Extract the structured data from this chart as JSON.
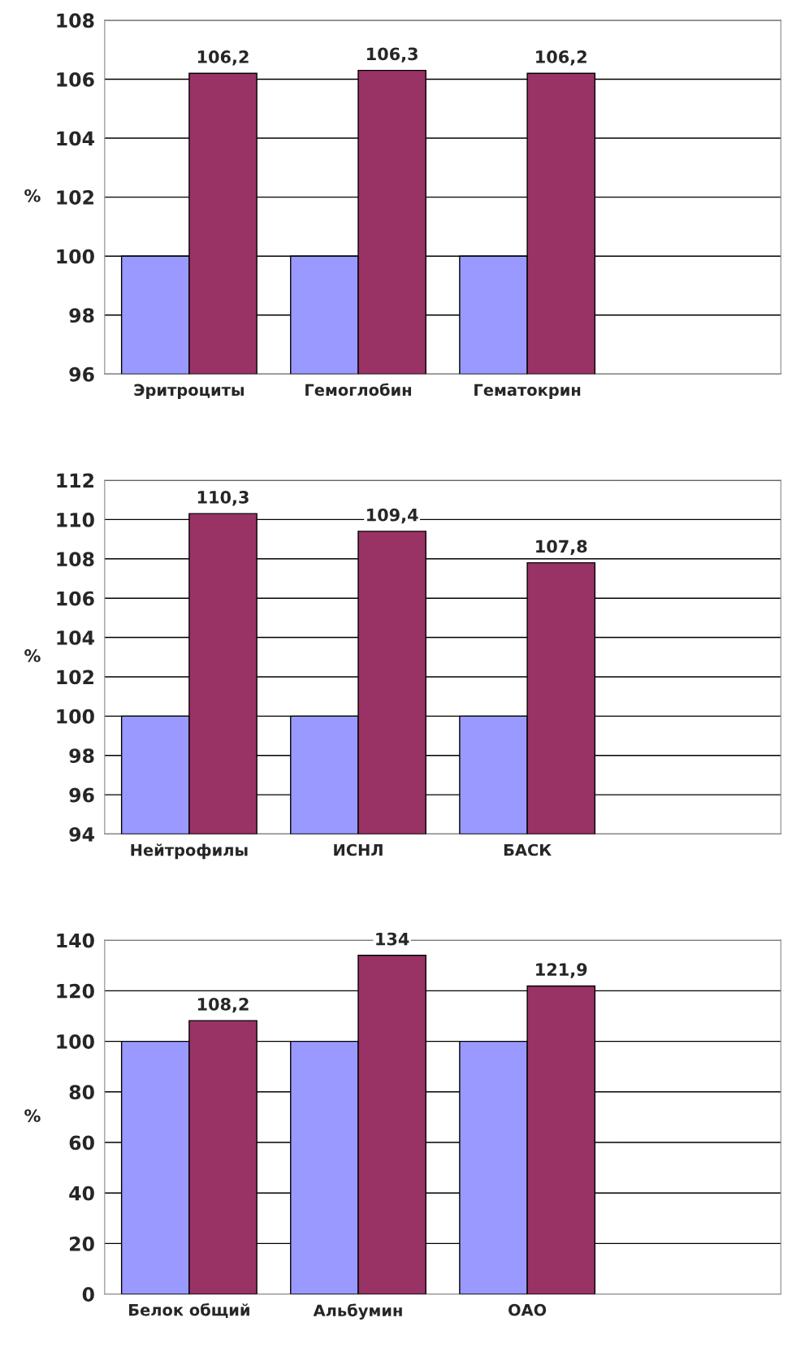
{
  "chart_data": [
    {
      "type": "bar",
      "ylabel": "%",
      "categories": [
        "Эритроциты",
        "Гемоглобин",
        "Гематокрин",
        null
      ],
      "ylim": [
        96,
        108
      ],
      "yticks": [
        96,
        98,
        100,
        102,
        104,
        106,
        108
      ],
      "grid": "y",
      "series": [
        {
          "color": "#9999ff",
          "values": [
            100,
            100,
            100,
            null
          ]
        },
        {
          "color": "#993366",
          "values": [
            106.2,
            106.3,
            106.2,
            null
          ],
          "value_labels": [
            "106,2",
            "106,3",
            "106,2",
            null
          ]
        }
      ]
    },
    {
      "type": "bar",
      "ylabel": "%",
      "categories": [
        "Нейтрофилы",
        "ИСНЛ",
        "БАСК",
        null
      ],
      "ylim": [
        94,
        112
      ],
      "yticks": [
        94,
        96,
        98,
        100,
        102,
        104,
        106,
        108,
        110,
        112
      ],
      "grid": "y",
      "series": [
        {
          "color": "#9999ff",
          "values": [
            100,
            100,
            100,
            null
          ]
        },
        {
          "color": "#993366",
          "values": [
            110.3,
            109.4,
            107.8,
            null
          ],
          "value_labels": [
            "110,3",
            "109,4",
            "107,8",
            null
          ]
        }
      ]
    },
    {
      "type": "bar",
      "ylabel": "%",
      "categories": [
        "Белок общий",
        "Альбумин",
        "ОАО",
        null
      ],
      "ylim": [
        0,
        140
      ],
      "yticks": [
        0,
        20,
        40,
        60,
        80,
        100,
        120,
        140
      ],
      "grid": "y",
      "series": [
        {
          "color": "#9999ff",
          "values": [
            100,
            100,
            100,
            null
          ]
        },
        {
          "color": "#993366",
          "values": [
            108.2,
            134,
            121.9,
            null
          ],
          "value_labels": [
            "108,2",
            "134",
            "121,9",
            null
          ]
        }
      ]
    }
  ]
}
